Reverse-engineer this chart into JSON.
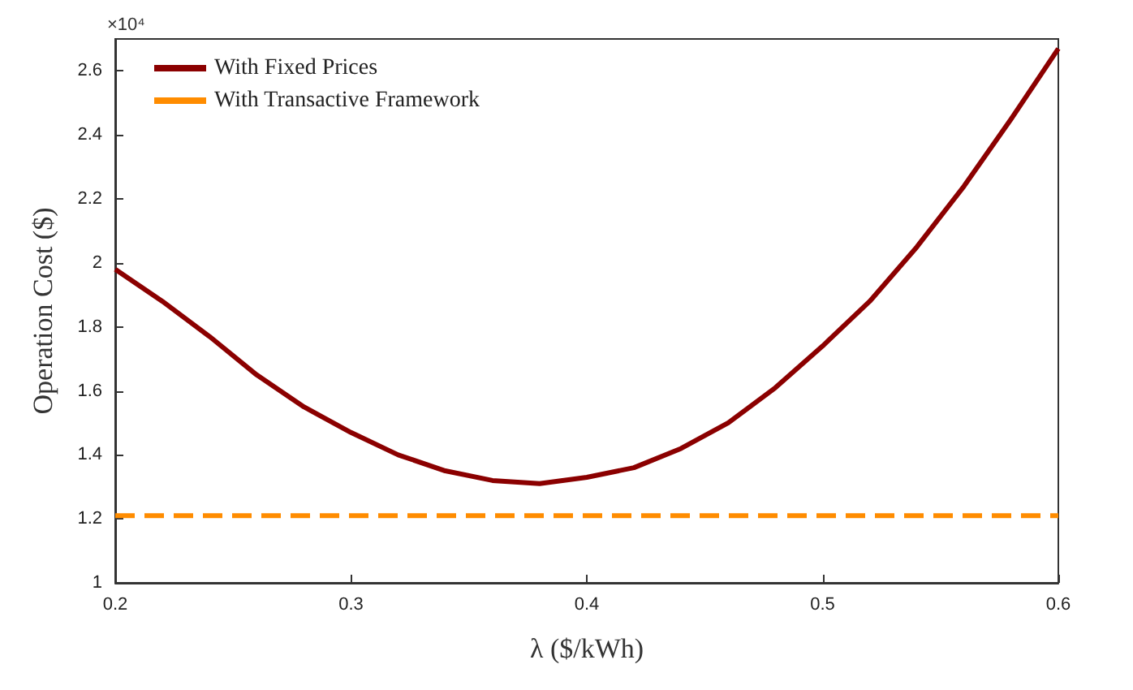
{
  "chart_data": {
    "type": "line",
    "xlabel": "λ ($/kWh)",
    "ylabel": "Operation Cost ($)",
    "annotations": [
      "×10⁴"
    ],
    "series": [
      {
        "name": "With Fixed Prices",
        "color": "#8b0000",
        "line_style": "solid",
        "x": [
          0.2,
          0.22,
          0.24,
          0.26,
          0.28,
          0.3,
          0.32,
          0.34,
          0.36,
          0.38,
          0.4,
          0.42,
          0.44,
          0.46,
          0.48,
          0.5,
          0.52,
          0.54,
          0.56,
          0.58,
          0.6
        ],
        "values": [
          1.98,
          1.88,
          1.77,
          1.65,
          1.55,
          1.47,
          1.4,
          1.35,
          1.32,
          1.31,
          1.33,
          1.36,
          1.42,
          1.5,
          1.61,
          1.74,
          1.88,
          2.05,
          2.24,
          2.45,
          2.67
        ]
      },
      {
        "name": "With Transactive Framework",
        "color": "#ff8c00",
        "line_style": "dashed",
        "x": [
          0.2,
          0.6
        ],
        "values": [
          1.21,
          1.21
        ]
      }
    ],
    "xlim": [
      0.2,
      0.6
    ],
    "xticks": [
      0.2,
      0.3,
      0.4,
      0.5,
      0.6
    ],
    "ylim": [
      1,
      2.7
    ],
    "yticks": [
      1,
      1.2,
      1.4,
      1.6,
      1.8,
      2,
      2.2,
      2.4,
      2.6
    ],
    "grid": false,
    "legend": "top left",
    "marker": "none"
  }
}
